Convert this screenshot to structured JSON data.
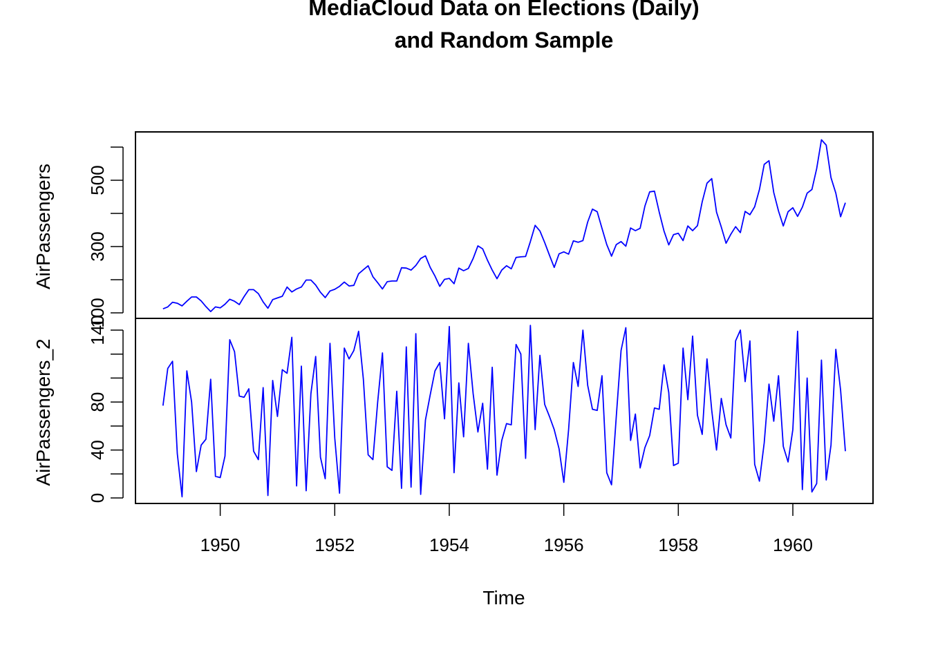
{
  "chart_data": {
    "type": "line",
    "title_lines": [
      "MediaCloud Data on Elections (Daily)",
      "and Random Sample"
    ],
    "xlabel": "Time",
    "x_ticks": [
      1950,
      1952,
      1954,
      1956,
      1958,
      1960
    ],
    "x_tick_labels": [
      "1950",
      "1952",
      "1954",
      "1956",
      "1958",
      "1960"
    ],
    "xlim": [
      1948.52,
      1961.4
    ],
    "x_start": 1949.0,
    "x_step": 0.0833333,
    "series_color": "#0000ff",
    "panels": [
      {
        "name": "AirPassengers",
        "ylabel": "AirPassengers",
        "ylim": [
          100,
          630
        ],
        "y_ticks": [
          100,
          200,
          300,
          400,
          500,
          600
        ],
        "y_tick_labels": [
          "100",
          "",
          "300",
          "",
          "500",
          ""
        ],
        "values": [
          112,
          118,
          132,
          129,
          121,
          135,
          148,
          148,
          136,
          119,
          104,
          118,
          115,
          126,
          141,
          135,
          125,
          149,
          170,
          170,
          158,
          133,
          114,
          140,
          145,
          150,
          178,
          163,
          172,
          178,
          199,
          199,
          184,
          162,
          146,
          166,
          171,
          180,
          193,
          181,
          183,
          218,
          230,
          242,
          209,
          191,
          172,
          194,
          196,
          196,
          236,
          235,
          229,
          243,
          264,
          272,
          237,
          211,
          180,
          201,
          204,
          188,
          235,
          227,
          234,
          264,
          302,
          293,
          259,
          229,
          203,
          229,
          242,
          233,
          267,
          269,
          270,
          315,
          364,
          347,
          312,
          274,
          237,
          278,
          284,
          277,
          317,
          313,
          318,
          374,
          413,
          405,
          355,
          306,
          271,
          306,
          315,
          301,
          356,
          348,
          355,
          422,
          465,
          467,
          404,
          347,
          305,
          336,
          340,
          318,
          362,
          348,
          363,
          435,
          491,
          505,
          404,
          359,
          310,
          337,
          360,
          342,
          406,
          396,
          420,
          472,
          548,
          559,
          463,
          407,
          362,
          405,
          417,
          391,
          419,
          461,
          472,
          535,
          622,
          606,
          508,
          461,
          390,
          432
        ]
      },
      {
        "name": "AirPassengers_2",
        "ylabel": "AirPassengers_2",
        "ylim": [
          0,
          145
        ],
        "y_ticks": [
          0,
          20,
          40,
          60,
          80,
          100,
          120,
          140
        ],
        "y_tick_labels": [
          "0",
          "",
          "40",
          "",
          "80",
          "",
          "",
          "140"
        ],
        "values": [
          77,
          108,
          114,
          37,
          1,
          106,
          80,
          22,
          44,
          49,
          99,
          18,
          17,
          35,
          132,
          122,
          85,
          84,
          91,
          39,
          32,
          92,
          2,
          98,
          68,
          107,
          104,
          134,
          10,
          110,
          6,
          87,
          118,
          34,
          16,
          129,
          50,
          4,
          125,
          116,
          123,
          139,
          99,
          36,
          32,
          80,
          121,
          26,
          23,
          89,
          8,
          126,
          9,
          137,
          3,
          65,
          86,
          106,
          113,
          66,
          143,
          21,
          96,
          51,
          129,
          87,
          55,
          79,
          24,
          109,
          19,
          48,
          62,
          61,
          128,
          120,
          33,
          144,
          57,
          119,
          78,
          68,
          57,
          41,
          13,
          57,
          113,
          93,
          140,
          94,
          74,
          73,
          102,
          21,
          11,
          68,
          123,
          142,
          48,
          70,
          25,
          42,
          52,
          75,
          74,
          111,
          88,
          27,
          29,
          125,
          82,
          135,
          69,
          53,
          116,
          73,
          40,
          83,
          61,
          50,
          131,
          140,
          97,
          131,
          28,
          14,
          46,
          95,
          64,
          102,
          43,
          30,
          57,
          139,
          7,
          100,
          5,
          12,
          115,
          15,
          44,
          124,
          90,
          39
        ]
      }
    ]
  }
}
